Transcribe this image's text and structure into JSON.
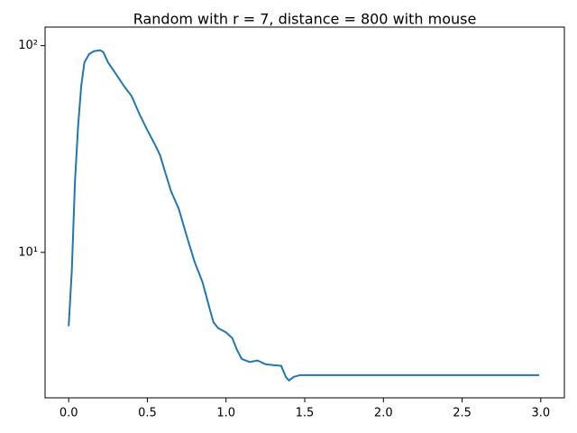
{
  "chart_data": {
    "type": "line",
    "title": "Random with r = 7, distance = 800 with mouse",
    "x": [
      0.0,
      0.02,
      0.04,
      0.06,
      0.08,
      0.1,
      0.13,
      0.16,
      0.2,
      0.22,
      0.25,
      0.3,
      0.35,
      0.4,
      0.45,
      0.5,
      0.55,
      0.58,
      0.62,
      0.65,
      0.7,
      0.75,
      0.8,
      0.85,
      0.9,
      0.92,
      0.95,
      1.0,
      1.04,
      1.07,
      1.1,
      1.15,
      1.2,
      1.25,
      1.3,
      1.35,
      1.38,
      1.4,
      1.43,
      1.47,
      1.5,
      2.0,
      2.5,
      2.99
    ],
    "series": [
      {
        "color": "#1f77b4",
        "values": [
          4.4,
          8.2,
          22,
          41,
          64,
          83,
          91,
          94,
          95,
          93,
          83,
          73,
          64,
          57,
          46.6,
          39,
          33,
          29.6,
          23.5,
          19.8,
          16.2,
          12,
          9.0,
          7.2,
          5.2,
          4.6,
          4.3,
          4.1,
          3.85,
          3.37,
          3.05,
          2.95,
          3.0,
          2.88,
          2.85,
          2.83,
          2.5,
          2.4,
          2.5,
          2.55,
          2.55,
          2.55,
          2.55,
          2.55
        ]
      }
    ],
    "xlim": [
      -0.15,
      3.15
    ],
    "xticks": [
      {
        "value": 0,
        "label": "0.0"
      },
      {
        "value": 0.5,
        "label": "0.5"
      },
      {
        "value": 1,
        "label": "1.0"
      },
      {
        "value": 1.5,
        "label": "1.5"
      },
      {
        "value": 2,
        "label": "2.0"
      },
      {
        "value": 2.5,
        "label": "2.5"
      },
      {
        "value": 3,
        "label": "3.0"
      }
    ],
    "ylim": [
      1.98,
      123
    ],
    "yticks": [
      {
        "value": 10,
        "label": "10¹"
      },
      {
        "value": 100,
        "label": "10²"
      }
    ],
    "log_y": true,
    "grid": false
  }
}
